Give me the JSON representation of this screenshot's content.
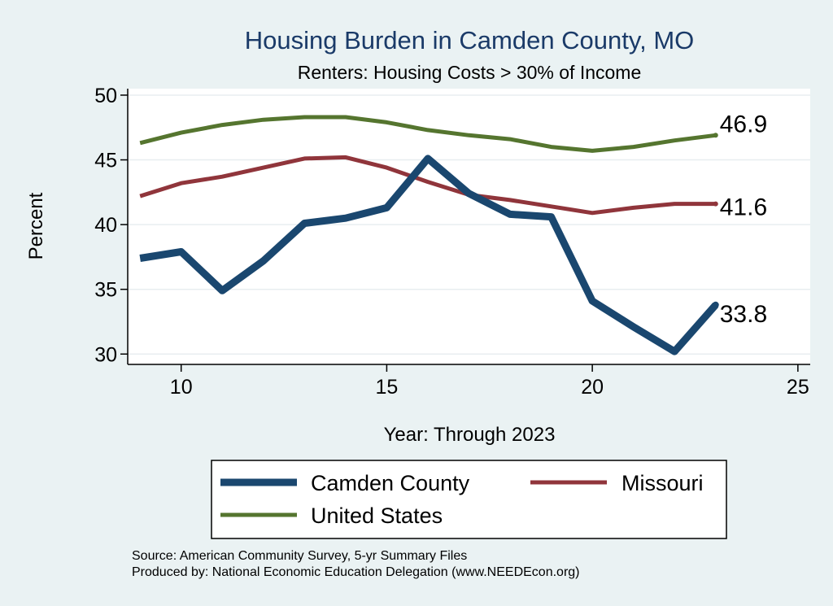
{
  "chart_data": {
    "type": "line",
    "title": "Housing Burden in Camden County, MO",
    "subtitle": "Renters: Housing Costs > 30% of Income",
    "xlabel": "Year: Through 2023",
    "ylabel": "Percent",
    "xlim": [
      8.7,
      25.3
    ],
    "ylim": [
      29.2,
      50.5
    ],
    "xticks": [
      10,
      15,
      20,
      25
    ],
    "yticks": [
      30,
      35,
      40,
      45,
      50
    ],
    "grid": true,
    "legend_position": "bottom",
    "series": [
      {
        "name": "Camden County",
        "color": "#1a476f",
        "width": 9,
        "x": [
          9,
          10,
          11,
          12,
          13,
          14,
          15,
          16,
          17,
          18,
          19,
          20,
          21,
          22,
          23
        ],
        "y": [
          37.4,
          37.9,
          34.9,
          37.2,
          40.1,
          40.5,
          41.3,
          45.1,
          42.4,
          40.8,
          40.6,
          34.1,
          32.1,
          30.2,
          33.8
        ],
        "end_label": "33.8"
      },
      {
        "name": "Missouri",
        "color": "#90353b",
        "width": 5,
        "x": [
          9,
          10,
          11,
          12,
          13,
          14,
          15,
          16,
          17,
          18,
          19,
          20,
          21,
          22,
          23
        ],
        "y": [
          42.2,
          43.2,
          43.7,
          44.4,
          45.1,
          45.2,
          44.4,
          43.3,
          42.3,
          41.9,
          41.4,
          40.9,
          41.3,
          41.6,
          41.6
        ],
        "end_label": "41.6"
      },
      {
        "name": "United States",
        "color": "#55752f",
        "width": 5,
        "x": [
          9,
          10,
          11,
          12,
          13,
          14,
          15,
          16,
          17,
          18,
          19,
          20,
          21,
          22,
          23
        ],
        "y": [
          46.3,
          47.1,
          47.7,
          48.1,
          48.3,
          48.3,
          47.9,
          47.3,
          46.9,
          46.6,
          46.0,
          45.7,
          46.0,
          46.5,
          46.9
        ],
        "end_label": "46.9"
      }
    ],
    "notes": [
      "Source: American Community Survey, 5-yr Summary Files",
      "Produced by: National Economic Education Delegation (www.NEEDEcon.org)"
    ]
  }
}
